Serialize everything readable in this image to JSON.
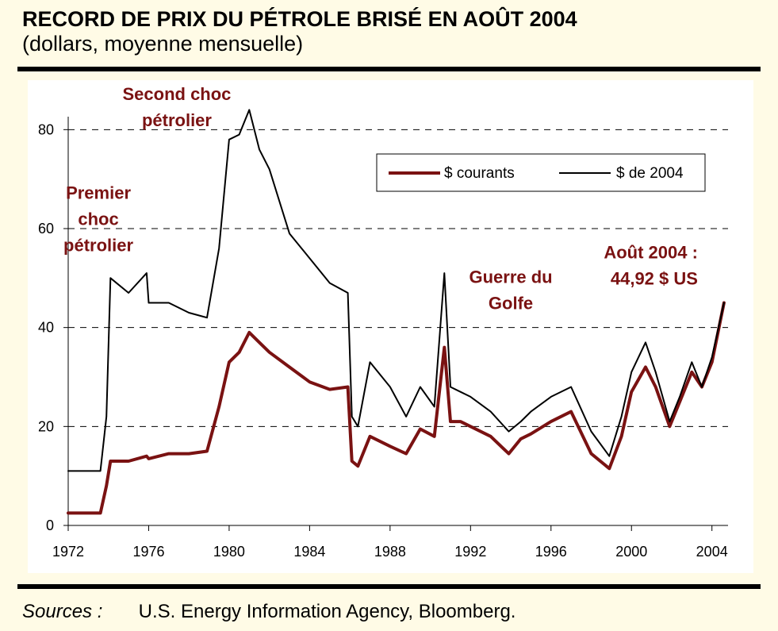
{
  "header": {
    "title": "RECORD DE PRIX DU PÉTROLE BRISÉ EN AOÛT 2004",
    "subtitle": "(dollars, moyenne mensuelle)"
  },
  "footer": {
    "sources_label": "Sources :",
    "sources_text": "U.S. Energy Information Agency, Bloomberg."
  },
  "colors": {
    "background": "#fffbe6",
    "current": "#7a1212",
    "real": "#000000",
    "annotation": "#7a1212"
  },
  "chart_data": {
    "type": "line",
    "title": "RECORD DE PRIX DU PÉTROLE BRISÉ EN AOÛT 2004",
    "subtitle": "(dollars, moyenne mensuelle)",
    "xlim": [
      1972,
      2004.8
    ],
    "ylim": [
      0,
      90
    ],
    "x_ticks": [
      1972,
      1976,
      1980,
      1984,
      1988,
      1992,
      1996,
      2000,
      2004
    ],
    "y_ticks": [
      0,
      20,
      40,
      60,
      80
    ],
    "grid": "horizontal dashed",
    "legend": {
      "position": "top-right",
      "entries": [
        "$ courants",
        "$ de 2004"
      ]
    },
    "annotations": [
      {
        "x": 1977.4,
        "y": 86,
        "lines": [
          "Second choc",
          "pétrolier"
        ]
      },
      {
        "x": 1973.5,
        "y": 66,
        "lines": [
          "Premier",
          "choc",
          "pétrolier"
        ]
      },
      {
        "x": 1994.0,
        "y": 49,
        "lines": [
          "Guerre du",
          "Golfe"
        ]
      },
      {
        "x": 2003.3,
        "y": 54,
        "lines": [
          "Août 2004 :",
          "44,92 $ US"
        ],
        "align": "end"
      }
    ],
    "series": [
      {
        "name": "$ courants",
        "color": "#7a1212",
        "width": 4,
        "x": [
          1972.0,
          1973.6,
          1973.9,
          1974.1,
          1975.0,
          1975.9,
          1976.0,
          1977.0,
          1978.0,
          1978.9,
          1979.5,
          1980.0,
          1980.5,
          1981.0,
          1981.5,
          1982.0,
          1983.0,
          1984.0,
          1985.0,
          1985.9,
          1986.1,
          1986.4,
          1987.0,
          1988.0,
          1988.8,
          1989.5,
          1990.2,
          1990.7,
          1991.0,
          1991.5,
          1992.0,
          1993.0,
          1993.9,
          1994.5,
          1995.0,
          1996.0,
          1997.0,
          1998.0,
          1998.9,
          1999.5,
          2000.0,
          2000.7,
          2001.2,
          2001.9,
          2002.4,
          2003.0,
          2003.5,
          2004.0,
          2004.6
        ],
        "y": [
          2.5,
          2.5,
          8,
          13,
          13,
          14,
          13.5,
          14.5,
          14.5,
          15,
          24,
          33,
          35,
          39,
          37,
          35,
          32,
          29,
          27.5,
          28,
          13,
          12,
          18,
          16,
          14.5,
          19.5,
          18,
          36,
          21,
          21,
          20,
          18,
          14.5,
          17.5,
          18.5,
          21,
          23,
          14.5,
          11.5,
          18,
          27,
          32,
          28,
          20,
          25,
          31,
          28,
          33,
          45
        ]
      },
      {
        "name": "$ de 2004",
        "color": "#000000",
        "width": 2,
        "x": [
          1972.0,
          1973.6,
          1973.9,
          1974.1,
          1975.0,
          1975.9,
          1976.0,
          1977.0,
          1978.0,
          1978.9,
          1979.5,
          1980.0,
          1980.5,
          1981.0,
          1981.5,
          1982.0,
          1983.0,
          1984.0,
          1985.0,
          1985.9,
          1986.1,
          1986.4,
          1987.0,
          1988.0,
          1988.8,
          1989.5,
          1990.2,
          1990.7,
          1991.0,
          1991.5,
          1992.0,
          1993.0,
          1993.9,
          1994.5,
          1995.0,
          1996.0,
          1997.0,
          1998.0,
          1998.9,
          1999.5,
          2000.0,
          2000.7,
          2001.2,
          2001.9,
          2002.4,
          2003.0,
          2003.5,
          2004.0,
          2004.6
        ],
        "y": [
          11,
          11,
          22,
          50,
          47,
          51,
          45,
          45,
          43,
          42,
          56,
          78,
          79,
          84,
          76,
          72,
          59,
          54,
          49,
          47,
          22,
          20,
          33,
          28,
          22,
          28,
          24,
          51,
          28,
          27,
          26,
          23,
          19,
          21,
          23,
          26,
          28,
          19,
          14,
          22,
          31,
          37,
          31,
          21,
          26,
          33,
          28,
          34,
          45
        ]
      }
    ]
  }
}
